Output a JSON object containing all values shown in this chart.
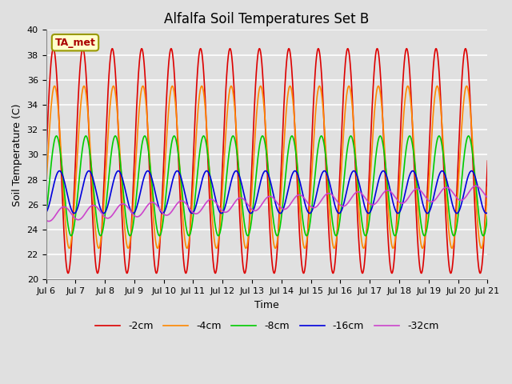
{
  "title": "Alfalfa Soil Temperatures Set B",
  "xlabel": "Time",
  "ylabel": "Soil Temperature (C)",
  "ylim": [
    20,
    40
  ],
  "annotation": "TA_met",
  "series": [
    {
      "label": "-2cm",
      "color": "#dd0000",
      "amplitude": 9.0,
      "base": 29.5,
      "phase": 0.0,
      "trend": 0.0
    },
    {
      "label": "-4cm",
      "color": "#ff8800",
      "amplitude": 6.5,
      "base": 29.0,
      "phase": 0.25,
      "trend": 0.0
    },
    {
      "label": "-8cm",
      "color": "#00cc00",
      "amplitude": 4.0,
      "base": 27.5,
      "phase": 0.65,
      "trend": 0.0
    },
    {
      "label": "-16cm",
      "color": "#0000dd",
      "amplitude": 1.7,
      "base": 27.0,
      "phase": 1.3,
      "trend": 0.0
    },
    {
      "label": "-32cm",
      "color": "#cc44cc",
      "amplitude": 0.55,
      "base": 25.2,
      "phase": 2.2,
      "trend": 0.12
    }
  ],
  "background_color": "#e0e0e0",
  "plot_bg_color": "#e0e0e0",
  "grid_color": "#ffffff",
  "title_fontsize": 12,
  "tick_label_fontsize": 8,
  "axis_label_fontsize": 9,
  "legend_fontsize": 9,
  "n_points": 2000,
  "start_day": 6,
  "end_day": 21,
  "xtick_days": [
    6,
    7,
    8,
    9,
    10,
    11,
    12,
    13,
    14,
    15,
    16,
    17,
    18,
    19,
    20,
    21
  ]
}
